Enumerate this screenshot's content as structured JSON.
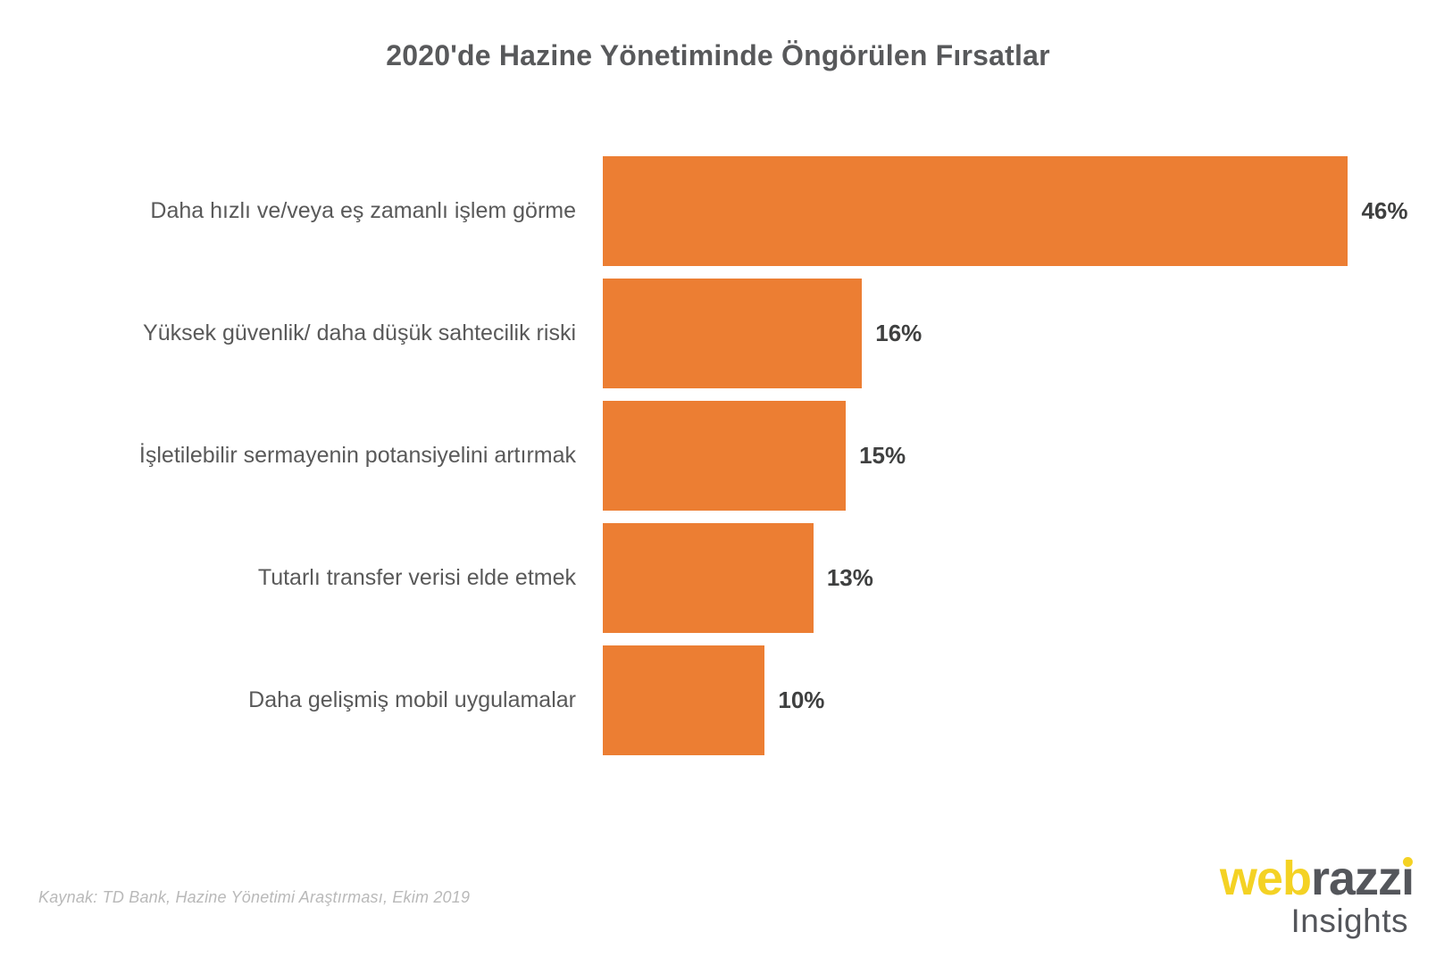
{
  "title": "2020'de Hazine Yönetiminde Öngörülen Fırsatlar",
  "source": "Kaynak: TD Bank, Hazine Yönetimi Araştırması, Ekim 2019",
  "logo": {
    "yellow_part": "web",
    "gray_part": "razzi",
    "subtitle": "Insights"
  },
  "colors": {
    "bar": "#EC7E33",
    "title": "#58595B",
    "label": "#595959",
    "value": "#3F4040",
    "source": "#B9B9B9",
    "logo_yellow": "#F4D224",
    "logo_gray": "#54565B"
  },
  "chart_data": {
    "type": "bar",
    "orientation": "horizontal",
    "title": "2020'de Hazine Yönetiminde Öngörülen Fırsatlar",
    "categories": [
      "Daha hızlı ve/veya eş zamanlı işlem görme",
      "Yüksek güvenlik/ daha düşük sahtecilik riski",
      "İşletilebilir sermayenin potansiyelini artırmak",
      "Tutarlı transfer verisi elde etmek",
      "Daha gelişmiş mobil uygulamalar"
    ],
    "values": [
      46,
      16,
      15,
      13,
      10
    ],
    "value_labels": [
      "46%",
      "16%",
      "15%",
      "13%",
      "10%"
    ],
    "xlabel": "",
    "ylabel": "",
    "xlim": [
      0,
      50
    ],
    "grid": false,
    "legend": false,
    "data_labels_position": "outside-end"
  }
}
